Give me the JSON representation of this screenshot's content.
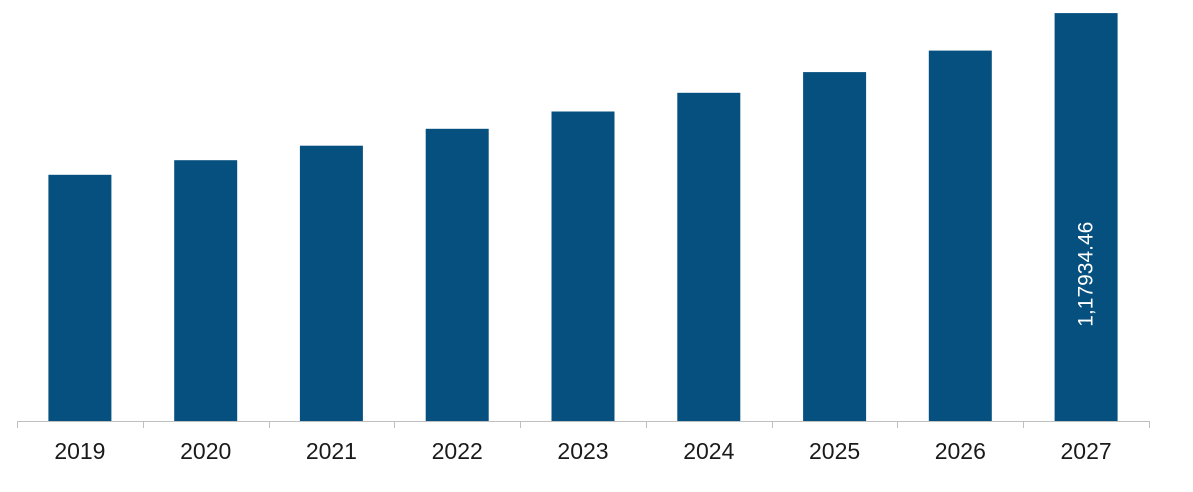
{
  "chart_data": {
    "type": "bar",
    "categories": [
      "2019",
      "2020",
      "2021",
      "2022",
      "2023",
      "2024",
      "2025",
      "2026",
      "2027"
    ],
    "values": [
      71200,
      75400,
      79600,
      84500,
      89500,
      94900,
      100900,
      107100,
      117934.46
    ],
    "data_labels": [
      {
        "index": 8,
        "text": "1,17934.46"
      }
    ],
    "title": "",
    "xlabel": "",
    "ylabel": "",
    "ylim": [
      0,
      120000
    ],
    "grid": false,
    "legend": "none",
    "bar_color": "#06507F",
    "axis_color": "#bfbfbf"
  }
}
